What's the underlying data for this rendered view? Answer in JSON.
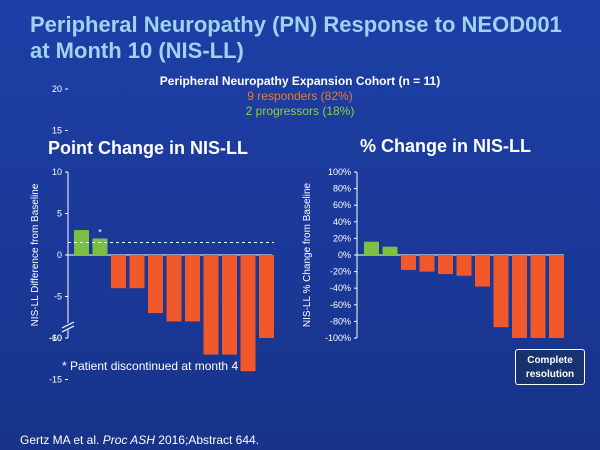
{
  "slide": {
    "title": "Peripheral Neuropathy (PN) Response to NEOD001 at Month 10 (NIS-LL)",
    "cohort_label": "Peripheral Neuropathy Expansion Cohort (n = 11)",
    "responders_label": "9 responders (82%)",
    "progressors_label": "2 progressors (18%)",
    "footnote": "* Patient discontinued at month 4",
    "citation_prefix": "Gertz MA et al. ",
    "citation_journal": "Proc ASH",
    "citation_suffix": " 2016;Abstract 644.",
    "complete_resolution_label": "Complete resolution"
  },
  "colors": {
    "responder": "#f2592a",
    "progressor": "#7ac143",
    "axis": "#ffffff"
  },
  "chart_data": [
    {
      "type": "bar",
      "title": "Point Change in NIS-LL",
      "ylabel": "NIS-LL Difference from Baseline",
      "yticks": [
        "20",
        "15",
        "10",
        "5",
        "0",
        "-5",
        "-10",
        "-15",
        "-60"
      ],
      "ylim": [
        -15,
        20
      ],
      "axis_break": true,
      "reference_line": 1.5,
      "categories": [
        "1",
        "2",
        "3",
        "4",
        "5",
        "6",
        "7",
        "8",
        "9",
        "10",
        "11"
      ],
      "values": [
        3,
        2,
        -4,
        -4,
        -7,
        -8,
        -8,
        -12,
        -12,
        -14,
        -60
      ],
      "status": [
        "progressor",
        "progressor",
        "responder",
        "responder",
        "responder",
        "responder",
        "responder",
        "responder",
        "responder",
        "responder",
        "responder"
      ],
      "annotations": [
        {
          "category": "2",
          "text": "*"
        }
      ]
    },
    {
      "type": "bar",
      "title": "% Change in NIS-LL",
      "ylabel": "NIS-LL % Change from Baseline",
      "yticks": [
        "100%",
        "80%",
        "60%",
        "40%",
        "20%",
        "0%",
        "-20%",
        "-40%",
        "-60%",
        "-80%",
        "-100%"
      ],
      "ylim": [
        -100,
        100
      ],
      "categories": [
        "1",
        "2",
        "3",
        "4",
        "5",
        "6",
        "7",
        "8",
        "9",
        "10",
        "11"
      ],
      "values": [
        16,
        10,
        -18,
        -20,
        -23,
        -25,
        -38,
        -87,
        -100,
        -100,
        -100
      ],
      "status": [
        "progressor",
        "progressor",
        "responder",
        "responder",
        "responder",
        "responder",
        "responder",
        "responder",
        "responder",
        "responder",
        "responder"
      ]
    }
  ]
}
